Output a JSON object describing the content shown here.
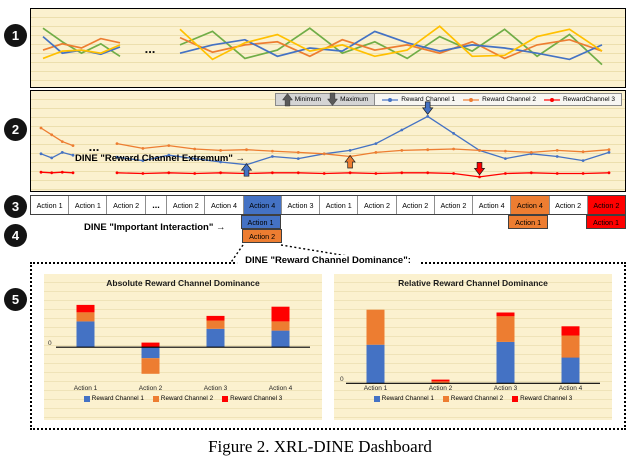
{
  "caption": "Figure 2. XRL-DINE Dashboard",
  "badges": [
    "1",
    "2",
    "3",
    "4",
    "5"
  ],
  "ellipsis": "...",
  "panel2": {
    "legend": {
      "minimum": "Minimum",
      "maximum": "Maximum"
    },
    "extremum_label": "DINE \"Reward Channel Extremum\" →"
  },
  "important_interaction": {
    "label": "DINE \"Important Interaction\" →",
    "rows": [
      [
        {
          "index": 6,
          "label": "Action 1",
          "color": "#4472C4"
        },
        {
          "index": 13,
          "label": "Action 1",
          "color": "#ED7D31"
        },
        {
          "index": 15,
          "label": "Action 1",
          "color": "#FF0000"
        }
      ],
      [
        {
          "index": 6,
          "label": "Action 2",
          "color": "#ED7D31"
        }
      ]
    ]
  },
  "panel5": {
    "title": "DINE \"Reward Channel Dominance\":"
  },
  "action_strip": {
    "cells": [
      "Action 1",
      "Action 1",
      "Action 2",
      "...",
      "Action 2",
      "Action 4",
      "Action 4",
      "Action 3",
      "Action 1",
      "Action 2",
      "Action 2",
      "Action 2",
      "Action 4",
      "Action 4",
      "Action 2",
      "Action 2"
    ],
    "highlights": [
      {
        "index": 6,
        "color": "#4472C4"
      },
      {
        "index": 13,
        "color": "#ED7D31"
      },
      {
        "index": 15,
        "color": "#FF0000"
      }
    ]
  },
  "chart_data": [
    {
      "id": "episode-overview-left",
      "type": "line",
      "ylim": [
        0,
        100
      ],
      "series": [
        {
          "name": "series-green",
          "color": "#70AD47",
          "values": [
            88,
            62,
            40,
            58,
            34
          ]
        },
        {
          "name": "series-orange",
          "color": "#ED7D31",
          "values": [
            46,
            58,
            50,
            68,
            60
          ]
        },
        {
          "name": "series-blue",
          "color": "#4472C4",
          "values": [
            72,
            40,
            46,
            38,
            52
          ]
        },
        {
          "name": "series-yellow",
          "color": "#FFC000",
          "values": [
            30,
            44,
            46,
            40,
            56
          ]
        }
      ]
    },
    {
      "id": "episode-overview-right",
      "type": "line",
      "ylim": [
        0,
        100
      ],
      "series": [
        {
          "name": "series-green",
          "color": "#70AD47",
          "values": [
            56,
            82,
            30,
            46,
            88,
            40,
            62,
            30,
            72,
            44,
            86,
            34,
            76,
            18
          ]
        },
        {
          "name": "series-orange",
          "color": "#ED7D31",
          "values": [
            70,
            42,
            56,
            62,
            34,
            66,
            46,
            56,
            40,
            62,
            30,
            56,
            66,
            44
          ]
        },
        {
          "name": "series-blue",
          "color": "#4472C4",
          "values": [
            40,
            56,
            66,
            34,
            50,
            44,
            82,
            60,
            44,
            56,
            50,
            40,
            28,
            56
          ]
        },
        {
          "name": "series-yellow",
          "color": "#FFC000",
          "values": [
            86,
            28,
            60,
            76,
            44,
            56,
            34,
            46,
            92,
            34,
            36,
            72,
            86,
            44
          ]
        }
      ]
    },
    {
      "id": "reward-channels-intro",
      "type": "line",
      "ylim": [
        0,
        100
      ],
      "series": [
        {
          "name": "Reward Channel 1",
          "color": "#4472C4",
          "values": [
            40,
            34,
            42,
            38
          ]
        },
        {
          "name": "Reward Channel 2",
          "color": "#ED7D31",
          "values": [
            78,
            68,
            58,
            52
          ]
        },
        {
          "name": "RewardChannel 3",
          "color": "#FF0000",
          "values": [
            13,
            12,
            13,
            12
          ]
        }
      ]
    },
    {
      "id": "reward-channels-main",
      "type": "line",
      "ylim": [
        0,
        100
      ],
      "series": [
        {
          "name": "Reward Channel 1",
          "color": "#4472C4",
          "values": [
            35,
            30,
            38,
            33,
            28,
            24,
            36,
            33,
            40,
            45,
            55,
            75,
            95,
            70,
            45,
            33,
            40,
            36,
            30,
            42
          ]
        },
        {
          "name": "Reward Channel 2",
          "color": "#ED7D31",
          "values": [
            55,
            48,
            52,
            47,
            45,
            46,
            44,
            42,
            40,
            36,
            42,
            45,
            46,
            47,
            45,
            44,
            42,
            45,
            43,
            46
          ]
        },
        {
          "name": "RewardChannel 3",
          "color": "#FF0000",
          "values": [
            12,
            11,
            12,
            11,
            12,
            11,
            12,
            12,
            11,
            12,
            11,
            12,
            12,
            11,
            6,
            11,
            12,
            11,
            11,
            12
          ]
        }
      ],
      "annotations": [
        {
          "kind": "Minimum",
          "dir": "up",
          "series_index": 0,
          "index": 5,
          "color": "#4472C4"
        },
        {
          "kind": "Minimum",
          "dir": "up",
          "series_index": 1,
          "index": 9,
          "color": "#ED7D31"
        },
        {
          "kind": "Maximum",
          "dir": "down",
          "series_index": 0,
          "index": 12,
          "color": "#4472C4"
        },
        {
          "kind": "Maximum",
          "dir": "down",
          "series_index": 2,
          "index": 14,
          "color": "#FF0000"
        }
      ]
    },
    {
      "id": "absolute-dominance",
      "type": "bar",
      "stacked": true,
      "title": "Absolute Reward Channel Dominance",
      "axis_label": "0",
      "categories": [
        "Action 1",
        "Action 2",
        "Action 3",
        "Action 4"
      ],
      "ylim": [
        -40,
        60
      ],
      "series": [
        {
          "name": "Reward Channel 1",
          "color": "#4472C4",
          "values": [
            28,
            -12,
            20,
            18
          ]
        },
        {
          "name": "Reward Channel 2",
          "color": "#ED7D31",
          "values": [
            10,
            -17,
            9,
            10
          ]
        },
        {
          "name": "Reward Channel 3",
          "color": "#FF0000",
          "values": [
            8,
            5,
            5,
            16
          ]
        }
      ]
    },
    {
      "id": "relative-dominance",
      "type": "bar",
      "stacked": true,
      "title": "Relative Reward Channel Dominance",
      "axis_label": "0",
      "categories": [
        "Action 1",
        "Action 2",
        "Action 3",
        "Action 4"
      ],
      "ylim": [
        0,
        100
      ],
      "series": [
        {
          "name": "Reward Channel 1",
          "color": "#4472C4",
          "values": [
            42,
            0,
            45,
            28
          ]
        },
        {
          "name": "Reward Channel 2",
          "color": "#ED7D31",
          "values": [
            38,
            2,
            28,
            24
          ]
        },
        {
          "name": "Reward Channel 3",
          "color": "#FF0000",
          "values": [
            0,
            2,
            4,
            10
          ]
        }
      ]
    }
  ]
}
